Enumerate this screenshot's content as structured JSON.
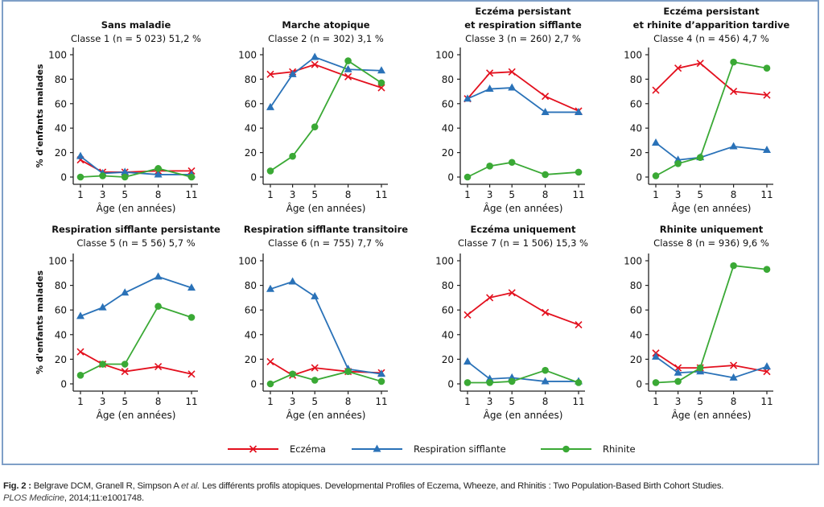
{
  "chart_data": [
    {
      "type": "line",
      "title": "Sans maladie",
      "subtitle": "Classe 1 (n = 5 023) 51,2 %",
      "xlabel": "Âge (en années)",
      "ylabel": "% d'enfants malades",
      "x": [
        1,
        3,
        5,
        8,
        11
      ],
      "ylim": [
        0,
        100
      ],
      "yticks": [
        0,
        20,
        40,
        60,
        80,
        100
      ],
      "series": [
        {
          "name": "Eczéma",
          "values": [
            14,
            4,
            4,
            5,
            5
          ]
        },
        {
          "name": "Respiration sifflante",
          "values": [
            17,
            3,
            4,
            2,
            2
          ]
        },
        {
          "name": "Rhinite",
          "values": [
            0,
            1,
            0,
            7,
            0
          ]
        }
      ]
    },
    {
      "type": "line",
      "title": "Marche atopique",
      "subtitle": "Classe 2 (n = 302) 3,1 %",
      "xlabel": "Âge (en années)",
      "ylabel": "",
      "x": [
        1,
        3,
        5,
        8,
        11
      ],
      "ylim": [
        0,
        100
      ],
      "yticks": [
        0,
        20,
        40,
        60,
        80,
        100
      ],
      "series": [
        {
          "name": "Eczéma",
          "values": [
            84,
            86,
            92,
            82,
            73
          ]
        },
        {
          "name": "Respiration sifflante",
          "values": [
            57,
            84,
            98,
            88,
            87
          ]
        },
        {
          "name": "Rhinite",
          "values": [
            5,
            17,
            41,
            95,
            77
          ]
        }
      ]
    },
    {
      "type": "line",
      "title": "Eczéma persistant",
      "title2": "et respiration sifflante",
      "subtitle": "Classe 3 (n = 260) 2,7 %",
      "xlabel": "Âge (en années)",
      "ylabel": "",
      "x": [
        1,
        3,
        5,
        8,
        11
      ],
      "ylim": [
        0,
        100
      ],
      "yticks": [
        0,
        20,
        40,
        60,
        80,
        100
      ],
      "series": [
        {
          "name": "Eczéma",
          "values": [
            64,
            85,
            86,
            66,
            54
          ]
        },
        {
          "name": "Respiration sifflante",
          "values": [
            64,
            72,
            73,
            53,
            53
          ]
        },
        {
          "name": "Rhinite",
          "values": [
            0,
            9,
            12,
            2,
            4
          ]
        }
      ]
    },
    {
      "type": "line",
      "title": "Eczéma persistant",
      "title2": "et rhinite d’apparition tardive",
      "subtitle": "Classe 4 (n = 456) 4,7 %",
      "xlabel": "Âge (en années)",
      "ylabel": "",
      "x": [
        1,
        3,
        5,
        8,
        11
      ],
      "ylim": [
        0,
        100
      ],
      "yticks": [
        0,
        20,
        40,
        60,
        80,
        100
      ],
      "series": [
        {
          "name": "Eczéma",
          "values": [
            71,
            89,
            93,
            70,
            67
          ]
        },
        {
          "name": "Respiration sifflante",
          "values": [
            28,
            14,
            16,
            25,
            22
          ]
        },
        {
          "name": "Rhinite",
          "values": [
            1,
            11,
            16,
            94,
            89
          ]
        }
      ]
    },
    {
      "type": "line",
      "title": "Respiration sifflante persistante",
      "subtitle": "Classe 5 (n = 5 56) 5,7 %",
      "xlabel": "Âge (en années)",
      "ylabel": "% d'enfants malades",
      "x": [
        1,
        3,
        5,
        8,
        11
      ],
      "ylim": [
        0,
        100
      ],
      "yticks": [
        0,
        20,
        40,
        60,
        80,
        100
      ],
      "series": [
        {
          "name": "Eczéma",
          "values": [
            26,
            16,
            10,
            14,
            8
          ]
        },
        {
          "name": "Respiration sifflante",
          "values": [
            55,
            62,
            74,
            87,
            78
          ]
        },
        {
          "name": "Rhinite",
          "values": [
            7,
            16,
            16,
            63,
            54
          ]
        }
      ]
    },
    {
      "type": "line",
      "title": "Respiration sifflante transitoire",
      "subtitle": "Classe 6 (n = 755) 7,7 %",
      "xlabel": "Âge (en années)",
      "ylabel": "",
      "x": [
        1,
        3,
        5,
        8,
        11
      ],
      "ylim": [
        0,
        100
      ],
      "yticks": [
        0,
        20,
        40,
        60,
        80,
        100
      ],
      "series": [
        {
          "name": "Eczéma",
          "values": [
            18,
            7,
            13,
            10,
            9
          ]
        },
        {
          "name": "Respiration sifflante",
          "values": [
            77,
            83,
            71,
            12,
            8
          ]
        },
        {
          "name": "Rhinite",
          "values": [
            0,
            8,
            3,
            10,
            2
          ]
        }
      ]
    },
    {
      "type": "line",
      "title": "Eczéma uniquement",
      "subtitle": "Classe 7 (n = 1 506) 15,3 %",
      "xlabel": "Âge (en années)",
      "ylabel": "",
      "x": [
        1,
        3,
        5,
        8,
        11
      ],
      "ylim": [
        0,
        100
      ],
      "yticks": [
        0,
        20,
        40,
        60,
        80,
        100
      ],
      "series": [
        {
          "name": "Eczéma",
          "values": [
            56,
            70,
            74,
            58,
            48
          ]
        },
        {
          "name": "Respiration sifflante",
          "values": [
            18,
            4,
            5,
            2,
            2
          ]
        },
        {
          "name": "Rhinite",
          "values": [
            1,
            1,
            2,
            11,
            1
          ]
        }
      ]
    },
    {
      "type": "line",
      "title": "Rhinite uniquement",
      "subtitle": "Classe 8 (n = 936) 9,6 %",
      "xlabel": "Âge (en années)",
      "ylabel": "",
      "x": [
        1,
        3,
        5,
        8,
        11
      ],
      "ylim": [
        0,
        100
      ],
      "yticks": [
        0,
        20,
        40,
        60,
        80,
        100
      ],
      "series": [
        {
          "name": "Eczéma",
          "values": [
            25,
            13,
            13,
            15,
            10
          ]
        },
        {
          "name": "Respiration sifflante",
          "values": [
            22,
            9,
            10,
            5,
            14
          ]
        },
        {
          "name": "Rhinite",
          "values": [
            1,
            2,
            13,
            96,
            93
          ]
        }
      ]
    }
  ],
  "legend": {
    "placement": "bottom-center",
    "entries": [
      {
        "label": "Eczéma",
        "color": "#e3101e",
        "marker": "x"
      },
      {
        "label": "Respiration sifflante",
        "color": "#2a72b8",
        "marker": "triangle"
      },
      {
        "label": "Rhinite",
        "color": "#3aa935",
        "marker": "circle"
      }
    ]
  },
  "caption": {
    "fig_label": "Fig. 2 :",
    "text1": " Belgrave DCM, Granell R, Simpson A ",
    "etal": "et al.",
    "text2": " Les différents profils atopiques. Developmental Profiles of Eczema, Wheeze, and Rhinitis : Two Population-Based Birth Cohort Studies.",
    "journal": "PLOS Medicine",
    "text3": ", 2014;11:e1001748."
  }
}
